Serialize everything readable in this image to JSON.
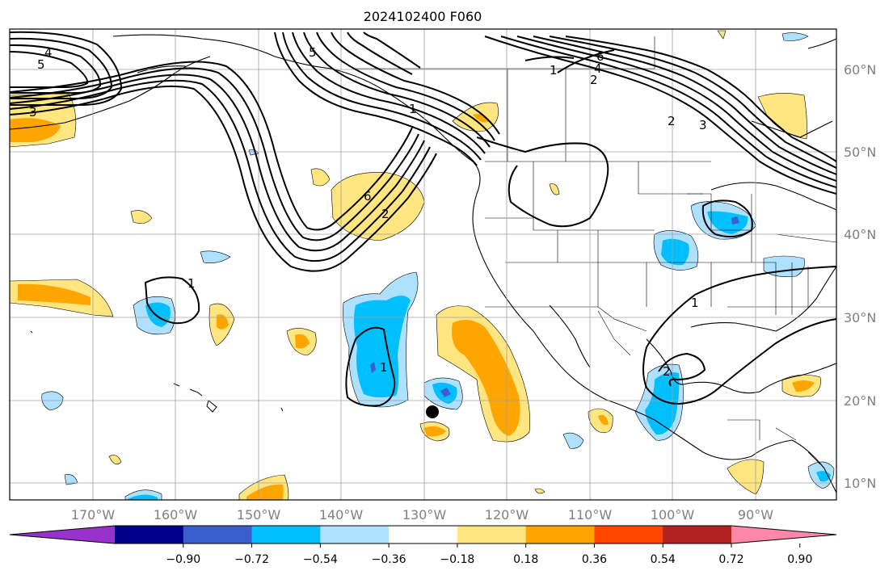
{
  "title": "2024102400 F060",
  "map": {
    "lon_labels": [
      "170°W",
      "160°W",
      "150°W",
      "140°W",
      "130°W",
      "120°W",
      "110°W",
      "100°W",
      "90°W"
    ],
    "lat_labels": [
      "60°N",
      "50°N",
      "40°N",
      "30°N",
      "20°N",
      "10°N"
    ],
    "contour_labels": [
      "4",
      "5",
      "3",
      "5",
      "6",
      "2",
      "1",
      "1",
      "2",
      "1",
      "6",
      "4",
      "1",
      "2",
      "3",
      "1",
      "2"
    ]
  },
  "colorbar": {
    "ticks": [
      "−0.90",
      "−0.72",
      "−0.54",
      "−0.36",
      "−0.18",
      "0.18",
      "0.36",
      "0.54",
      "0.72",
      "0.90"
    ],
    "colors": [
      "#9932cc",
      "#00008b",
      "#3a5fcd",
      "#00bfff",
      "#aee0ff",
      "#ffffff",
      "#ffe680",
      "#ffa500",
      "#ff4500",
      "#b22222",
      "#ff88aa"
    ]
  },
  "colors": {
    "light_blue": "#aee0ff",
    "blue": "#00bfff",
    "purple_blue": "#3a5fcd",
    "light_yellow": "#ffe680",
    "orange": "#ffa500",
    "grid": "#a0a0a0"
  }
}
